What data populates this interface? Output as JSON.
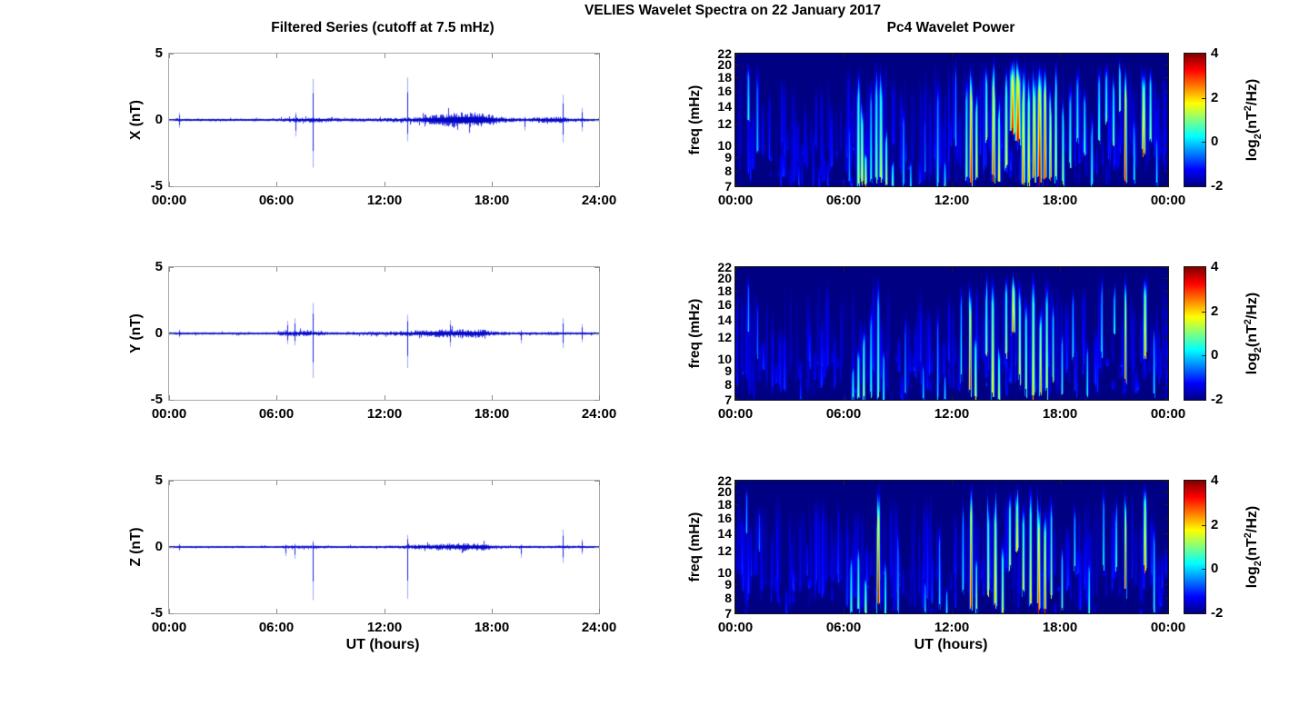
{
  "suptitle": "VELIES Wavelet Spectra on 22 January 2017",
  "left_column": {
    "title": "Filtered Series (cutoff at 7.5 mHz)",
    "xlabel": "UT (hours)",
    "xticks": [
      "00:00",
      "06:00",
      "12:00",
      "18:00",
      "24:00"
    ],
    "yticks": [
      "5",
      "0",
      "-5"
    ],
    "ylim": [
      -5,
      5
    ]
  },
  "right_column": {
    "title": "Pc4 Wavelet Power",
    "xlabel": "UT (hours)",
    "xticks": [
      "00:00",
      "06:00",
      "12:00",
      "18:00",
      "00:00"
    ],
    "ylabel": "freq (mHz)",
    "yticks": [
      22,
      20,
      18,
      16,
      14,
      12,
      10,
      9,
      8,
      7
    ],
    "yscale": "log",
    "freq_range_mHz": [
      7,
      22
    ]
  },
  "colorbar": {
    "min": -2,
    "max": 4,
    "ticks": [
      "4",
      "2",
      "0",
      "-2"
    ],
    "label_parts": {
      "pre": "log",
      "sub": "2",
      "mid": "(nT",
      "sup": "2",
      "post": "/Hz)"
    },
    "label_plain": "log2(nT^2/Hz)",
    "colormap": "jet"
  },
  "colors": {
    "series_line": "#0a0ed7",
    "spectro_background": "#000082",
    "series_axis": "#a9a9a9",
    "spectro_axis": "#141414",
    "text": "#000000",
    "background": "#ffffff"
  },
  "chart_data": [
    {
      "type": "line",
      "component": "X",
      "row": 0,
      "ylabel": "X (nT)",
      "ylim": [
        -5,
        5
      ],
      "x_hours": [
        0,
        24
      ],
      "seed": 101,
      "envelope_format": "[hour, noise amplitude nT]",
      "noise_envelope_nT": [
        [
          0,
          0.1
        ],
        [
          6,
          0.1
        ],
        [
          6.7,
          0.18
        ],
        [
          8.6,
          0.2
        ],
        [
          9.2,
          0.12
        ],
        [
          12.5,
          0.15
        ],
        [
          13.8,
          0.22
        ],
        [
          14.5,
          0.35
        ],
        [
          15.5,
          0.5
        ],
        [
          16.5,
          0.6
        ],
        [
          17.5,
          0.55
        ],
        [
          18.2,
          0.3
        ],
        [
          19,
          0.18
        ],
        [
          20,
          0.12
        ],
        [
          20.5,
          0.2
        ],
        [
          21.3,
          0.22
        ],
        [
          21.9,
          0.25
        ],
        [
          22.5,
          0.15
        ],
        [
          23.4,
          0.12
        ],
        [
          24,
          0.1
        ]
      ],
      "spikes_format": "[hour, up nT, down nT]",
      "spikes_nT": [
        [
          0.55,
          0.55,
          -0.6
        ],
        [
          7.05,
          0.6,
          -1.25
        ],
        [
          8.05,
          3.1,
          -3.6
        ],
        [
          13.3,
          3.2,
          -1.6
        ],
        [
          19.9,
          0.25,
          -0.8
        ],
        [
          22.0,
          1.9,
          -1.7
        ],
        [
          23.1,
          0.9,
          -0.85
        ]
      ]
    },
    {
      "type": "heatmap",
      "component": "X",
      "row": 0,
      "ylabel": "freq (mHz)",
      "value_range_log2": [
        -2,
        4
      ],
      "seed": 201,
      "events_format": "[hour, halfwidth h, freq lo mHz, freq hi mHz, peak log2 power]",
      "events": [
        [
          0.7,
          0.05,
          12,
          22,
          0.6
        ],
        [
          1.2,
          0.05,
          9,
          22,
          0.1
        ],
        [
          2.5,
          0.04,
          7,
          10,
          -0.9
        ],
        [
          3.5,
          0.04,
          7,
          9,
          -0.7
        ],
        [
          4.3,
          0.04,
          7,
          12,
          -1.0
        ],
        [
          5.1,
          0.04,
          7,
          9,
          -0.9
        ],
        [
          6.3,
          0.05,
          7,
          14,
          -0.3
        ],
        [
          6.8,
          0.06,
          7,
          22,
          1.6
        ],
        [
          7.0,
          0.06,
          7,
          16,
          2.1
        ],
        [
          7.2,
          0.05,
          7,
          10,
          2.2
        ],
        [
          7.5,
          0.05,
          7,
          20,
          0.6
        ],
        [
          7.8,
          0.06,
          7,
          22,
          1.2
        ],
        [
          8.05,
          0.07,
          7,
          22,
          1.6
        ],
        [
          8.35,
          0.05,
          7,
          12,
          1.7
        ],
        [
          8.7,
          0.05,
          7,
          9,
          1.2
        ],
        [
          9.3,
          0.05,
          7,
          16,
          0.1
        ],
        [
          9.7,
          0.04,
          7,
          9,
          0.5
        ],
        [
          10.5,
          0.04,
          8,
          14,
          -0.4
        ],
        [
          11.2,
          0.05,
          7,
          20,
          0.3
        ],
        [
          11.6,
          0.04,
          7,
          9,
          0.8
        ],
        [
          12.2,
          0.04,
          10,
          22,
          0.1
        ],
        [
          12.8,
          0.05,
          7,
          22,
          1.3
        ],
        [
          13.05,
          0.06,
          7,
          22,
          3.5
        ],
        [
          13.35,
          0.05,
          7,
          18,
          2.1
        ],
        [
          13.9,
          0.05,
          10,
          22,
          1.6
        ],
        [
          14.3,
          0.07,
          7,
          22,
          3.1
        ],
        [
          14.6,
          0.05,
          7,
          16,
          2.2
        ],
        [
          15.0,
          0.06,
          8,
          22,
          2.0
        ],
        [
          15.35,
          0.1,
          11,
          22,
          3.3
        ],
        [
          15.65,
          0.1,
          10,
          22,
          3.5
        ],
        [
          15.95,
          0.07,
          7,
          22,
          2.8
        ],
        [
          16.25,
          0.06,
          7,
          20,
          2.3
        ],
        [
          16.55,
          0.07,
          7,
          22,
          3.1
        ],
        [
          16.85,
          0.08,
          7,
          22,
          3.8
        ],
        [
          17.15,
          0.06,
          7,
          22,
          3.4
        ],
        [
          17.45,
          0.05,
          7,
          18,
          2.6
        ],
        [
          17.75,
          0.05,
          7,
          22,
          2.0
        ],
        [
          18.15,
          0.05,
          7,
          16,
          1.4
        ],
        [
          18.55,
          0.05,
          8,
          20,
          1.0
        ],
        [
          18.95,
          0.05,
          10,
          22,
          0.8
        ],
        [
          19.35,
          0.05,
          9,
          18,
          0.9
        ],
        [
          19.75,
          0.05,
          7,
          14,
          0.7
        ],
        [
          20.15,
          0.05,
          10,
          22,
          0.9
        ],
        [
          20.55,
          0.05,
          12,
          22,
          1.1
        ],
        [
          20.95,
          0.05,
          10,
          20,
          1.2
        ],
        [
          21.3,
          0.04,
          13,
          22,
          1.4
        ],
        [
          21.62,
          0.05,
          7,
          22,
          3.6
        ],
        [
          22.1,
          0.04,
          7,
          14,
          0.6
        ],
        [
          22.62,
          0.07,
          9,
          22,
          2.8
        ],
        [
          23.0,
          0.05,
          10,
          20,
          1.4
        ],
        [
          23.35,
          0.04,
          7,
          12,
          0.4
        ]
      ]
    },
    {
      "type": "line",
      "component": "Y",
      "row": 1,
      "ylabel": "Y (nT)",
      "ylim": [
        -5,
        5
      ],
      "x_hours": [
        0,
        24
      ],
      "seed": 102,
      "noise_envelope_nT": [
        [
          0,
          0.09
        ],
        [
          6,
          0.09
        ],
        [
          6.4,
          0.2
        ],
        [
          7.6,
          0.22
        ],
        [
          8.4,
          0.18
        ],
        [
          9,
          0.1
        ],
        [
          10.5,
          0.12
        ],
        [
          12,
          0.15
        ],
        [
          13,
          0.18
        ],
        [
          14,
          0.25
        ],
        [
          15,
          0.3
        ],
        [
          16.5,
          0.32
        ],
        [
          17.5,
          0.3
        ],
        [
          18.3,
          0.15
        ],
        [
          19.5,
          0.1
        ],
        [
          20.5,
          0.1
        ],
        [
          21.3,
          0.12
        ],
        [
          22,
          0.12
        ],
        [
          23,
          0.1
        ],
        [
          24,
          0.09
        ]
      ],
      "spikes_nT": [
        [
          0.55,
          0.3,
          -0.3
        ],
        [
          6.6,
          0.95,
          -0.8
        ],
        [
          7.0,
          1.15,
          -0.9
        ],
        [
          8.05,
          2.3,
          -3.35
        ],
        [
          13.3,
          1.4,
          -2.6
        ],
        [
          15.7,
          1.0,
          -1.0
        ],
        [
          19.7,
          0.25,
          -0.75
        ],
        [
          22.0,
          1.15,
          -1.1
        ],
        [
          23.1,
          0.7,
          -0.65
        ]
      ]
    },
    {
      "type": "heatmap",
      "component": "Y",
      "row": 1,
      "ylabel": "freq (mHz)",
      "value_range_log2": [
        -2,
        4
      ],
      "seed": 202,
      "events": [
        [
          0.7,
          0.04,
          12,
          22,
          0.1
        ],
        [
          1.2,
          0.04,
          10,
          18,
          -0.4
        ],
        [
          3.6,
          0.04,
          7,
          9,
          -0.8
        ],
        [
          6.5,
          0.05,
          7,
          10,
          0.8
        ],
        [
          6.8,
          0.05,
          7,
          12,
          1.3
        ],
        [
          7.1,
          0.05,
          7,
          14,
          1.6
        ],
        [
          7.5,
          0.05,
          7,
          18,
          0.6
        ],
        [
          7.9,
          0.05,
          7,
          22,
          1.1
        ],
        [
          8.2,
          0.04,
          7,
          12,
          0.8
        ],
        [
          9.4,
          0.04,
          7,
          16,
          -0.1
        ],
        [
          10.4,
          0.04,
          7,
          10,
          0.3
        ],
        [
          11.2,
          0.04,
          7,
          18,
          0.1
        ],
        [
          11.6,
          0.04,
          7,
          9,
          0.5
        ],
        [
          12.5,
          0.04,
          8,
          22,
          0.6
        ],
        [
          13.0,
          0.05,
          7,
          22,
          3.4
        ],
        [
          13.3,
          0.05,
          7,
          14,
          1.8
        ],
        [
          13.9,
          0.05,
          10,
          22,
          1.4
        ],
        [
          14.25,
          0.06,
          7,
          22,
          2.2
        ],
        [
          14.6,
          0.05,
          7,
          12,
          1.6
        ],
        [
          15.0,
          0.05,
          10,
          22,
          1.7
        ],
        [
          15.4,
          0.07,
          12,
          22,
          2.8
        ],
        [
          15.75,
          0.05,
          8,
          22,
          2.0
        ],
        [
          16.1,
          0.05,
          7,
          20,
          1.5
        ],
        [
          16.5,
          0.06,
          7,
          22,
          2.2
        ],
        [
          16.9,
          0.05,
          7,
          18,
          2.5
        ],
        [
          17.25,
          0.05,
          7,
          22,
          1.9
        ],
        [
          17.6,
          0.04,
          8,
          18,
          1.3
        ],
        [
          18.1,
          0.04,
          7,
          14,
          0.8
        ],
        [
          18.7,
          0.04,
          10,
          20,
          0.6
        ],
        [
          19.5,
          0.04,
          7,
          12,
          0.6
        ],
        [
          20.3,
          0.04,
          10,
          22,
          0.5
        ],
        [
          21.0,
          0.04,
          12,
          20,
          0.8
        ],
        [
          21.62,
          0.04,
          8,
          22,
          3.1
        ],
        [
          22.7,
          0.06,
          10,
          22,
          2.5
        ],
        [
          23.2,
          0.04,
          7,
          14,
          0.5
        ]
      ]
    },
    {
      "type": "line",
      "component": "Z",
      "row": 2,
      "ylabel": "Z (nT)",
      "ylim": [
        -5,
        5
      ],
      "x_hours": [
        0,
        24
      ],
      "seed": 103,
      "noise_envelope_nT": [
        [
          0,
          0.07
        ],
        [
          6,
          0.07
        ],
        [
          6.4,
          0.12
        ],
        [
          8.4,
          0.12
        ],
        [
          9,
          0.08
        ],
        [
          12,
          0.09
        ],
        [
          13,
          0.12
        ],
        [
          14,
          0.2
        ],
        [
          15,
          0.25
        ],
        [
          16.5,
          0.3
        ],
        [
          17.5,
          0.28
        ],
        [
          18.3,
          0.12
        ],
        [
          19.5,
          0.08
        ],
        [
          21,
          0.09
        ],
        [
          21.8,
          0.12
        ],
        [
          22.5,
          0.1
        ],
        [
          24,
          0.08
        ]
      ],
      "spikes_nT": [
        [
          0.55,
          0.25,
          -0.3
        ],
        [
          6.5,
          0.2,
          -0.7
        ],
        [
          7.0,
          0.25,
          -0.9
        ],
        [
          8.05,
          0.5,
          -4.0
        ],
        [
          13.3,
          0.9,
          -3.9
        ],
        [
          19.7,
          0.2,
          -0.8
        ],
        [
          22.0,
          1.3,
          -1.2
        ],
        [
          23.1,
          0.6,
          -0.55
        ]
      ]
    },
    {
      "type": "heatmap",
      "component": "Z",
      "row": 2,
      "ylabel": "freq (mHz)",
      "value_range_log2": [
        -2,
        4
      ],
      "seed": 203,
      "events": [
        [
          0.6,
          0.04,
          14,
          22,
          0.1
        ],
        [
          1.3,
          0.04,
          12,
          18,
          -0.4
        ],
        [
          2.8,
          0.04,
          7,
          9,
          -0.9
        ],
        [
          6.4,
          0.05,
          7,
          12,
          0.9
        ],
        [
          6.8,
          0.05,
          7,
          14,
          1.1
        ],
        [
          7.2,
          0.05,
          7,
          10,
          1.6
        ],
        [
          7.9,
          0.06,
          7,
          22,
          3.7
        ],
        [
          8.3,
          0.04,
          7,
          12,
          1.1
        ],
        [
          9.0,
          0.04,
          7,
          16,
          0.1
        ],
        [
          10.5,
          0.04,
          7,
          10,
          0.3
        ],
        [
          11.3,
          0.04,
          7,
          18,
          0.3
        ],
        [
          11.7,
          0.04,
          7,
          9,
          0.6
        ],
        [
          12.6,
          0.04,
          8,
          20,
          0.6
        ],
        [
          13.05,
          0.05,
          7,
          22,
          3.5
        ],
        [
          13.35,
          0.04,
          7,
          12,
          1.6
        ],
        [
          14.0,
          0.05,
          8,
          22,
          1.8
        ],
        [
          14.4,
          0.06,
          7,
          22,
          2.4
        ],
        [
          14.8,
          0.05,
          7,
          14,
          1.8
        ],
        [
          15.2,
          0.05,
          10,
          22,
          1.6
        ],
        [
          15.6,
          0.06,
          12,
          22,
          2.2
        ],
        [
          15.95,
          0.05,
          8,
          20,
          1.9
        ],
        [
          16.35,
          0.05,
          7,
          22,
          2.1
        ],
        [
          16.8,
          0.06,
          7,
          22,
          3.2
        ],
        [
          17.15,
          0.05,
          7,
          18,
          2.9
        ],
        [
          17.5,
          0.04,
          8,
          22,
          1.6
        ],
        [
          18.1,
          0.04,
          7,
          14,
          1.0
        ],
        [
          18.8,
          0.04,
          10,
          20,
          0.7
        ],
        [
          19.6,
          0.04,
          7,
          12,
          0.8
        ],
        [
          20.4,
          0.04,
          10,
          22,
          0.6
        ],
        [
          21.1,
          0.04,
          10,
          20,
          1.0
        ],
        [
          21.62,
          0.04,
          8,
          22,
          3.3
        ],
        [
          22.7,
          0.06,
          10,
          22,
          2.6
        ],
        [
          23.2,
          0.04,
          7,
          16,
          0.8
        ]
      ]
    }
  ]
}
